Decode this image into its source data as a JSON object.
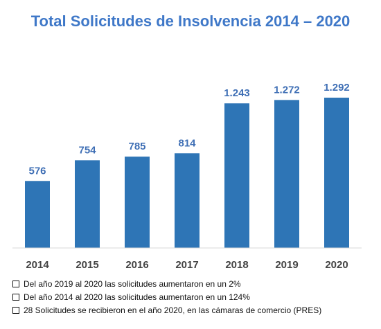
{
  "chart_data": {
    "type": "bar",
    "title": "Total Solicitudes de Insolvencia 2014 – 2020",
    "categories": [
      "2014",
      "2015",
      "2016",
      "2017",
      "2018",
      "2019",
      "2020"
    ],
    "values": [
      576,
      754,
      785,
      814,
      1243,
      1272,
      1292
    ],
    "value_labels": [
      "576",
      "754",
      "785",
      "814",
      "1.243",
      "1.272",
      "1.292"
    ],
    "xlabel": "",
    "ylabel": "",
    "ylim": [
      0,
      1500
    ],
    "grid": false,
    "legend": "none",
    "colors": {
      "bar": "#2e75b6",
      "value_label": "#3f6fb5",
      "title": "#3f78c8",
      "axis": "#d9d9d9"
    }
  },
  "notes": [
    "Del año 2019 al 2020 las solicitudes aumentaron en un 2%",
    "Del año 2014 al 2020 las solicitudes aumentaron en un 124%",
    "28 Solicitudes se recibieron en el año 2020, en las cámaras de comercio (PRES)"
  ]
}
